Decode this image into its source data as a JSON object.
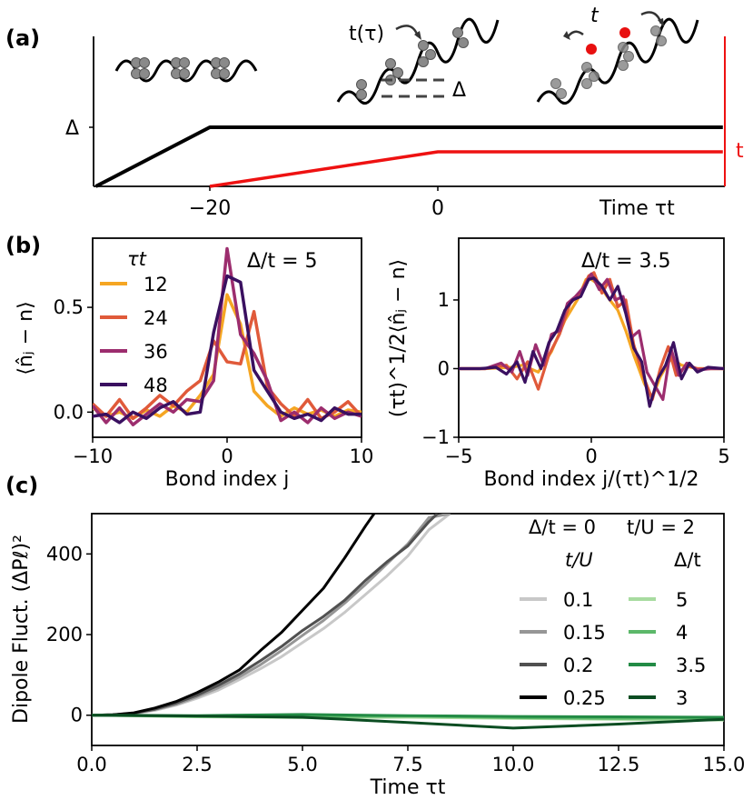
{
  "panel_labels": {
    "a": "(a)",
    "b": "(b)",
    "c": "(c)"
  },
  "colors": {
    "delta_line": "#000000",
    "t_line": "#ee1111",
    "atom": "#8a8a8a",
    "hole": "#e81010",
    "b_series": [
      "#f5a623",
      "#e05a3a",
      "#9c2d6e",
      "#3a1060"
    ],
    "c_gray": [
      "#c8c8c8",
      "#969696",
      "#505050",
      "#000000"
    ],
    "c_green": [
      "#a8dba0",
      "#5cb86a",
      "#238b45",
      "#0b4d22"
    ]
  },
  "chart_data": [
    {
      "panel": "a",
      "type": "line",
      "xlabel": "Time τt",
      "x_ticks": [
        "−20",
        "0"
      ],
      "x_tick_values": [
        -20,
        0
      ],
      "xlim": [
        -30,
        25
      ],
      "y_tick_labels": {
        "delta": "Δ",
        "t": "t"
      },
      "series": [
        {
          "name": "Δ",
          "x": [
            -30,
            -20,
            25
          ],
          "y": [
            0,
            1,
            1
          ]
        },
        {
          "name": "t",
          "x": [
            -20,
            0,
            25
          ],
          "y": [
            0,
            0.72,
            0.72
          ]
        }
      ],
      "annotations": {
        "t_tau": "t(τ)",
        "delta": "Δ",
        "t": "t"
      }
    },
    {
      "panel": "b-left",
      "type": "line",
      "annotation": "Δ/t = 5",
      "xlabel": "Bond index j",
      "ylabel": "⟨n̂ⱼ − n⟩",
      "xlim": [
        -10,
        10
      ],
      "ylim": [
        -0.12,
        0.83
      ],
      "x_ticks": [
        -10,
        0,
        10
      ],
      "y_ticks": [
        0.0,
        0.5
      ],
      "y_tick_labels": [
        "0.0",
        "0.5"
      ],
      "legend_title": "τt",
      "legend_position": "upper-left",
      "x": [
        -10,
        -9,
        -8,
        -7,
        -6,
        -5,
        -4,
        -3,
        -2,
        -1,
        0,
        1,
        2,
        3,
        4,
        5,
        6,
        7,
        8,
        9,
        10
      ],
      "series": [
        {
          "name": "12",
          "values": [
            0.02,
            -0.02,
            0.0,
            -0.03,
            0.01,
            -0.02,
            0.03,
            0.0,
            0.08,
            0.18,
            0.56,
            0.42,
            0.1,
            0.03,
            -0.02,
            0.02,
            -0.01,
            0.01,
            -0.02,
            0.01,
            0.0
          ]
        },
        {
          "name": "24",
          "values": [
            0.04,
            -0.02,
            0.06,
            -0.03,
            0.02,
            0.08,
            0.03,
            0.1,
            0.15,
            0.34,
            0.24,
            0.23,
            0.48,
            0.12,
            0.04,
            -0.02,
            0.06,
            -0.03,
            0.0,
            0.05,
            -0.02
          ]
        },
        {
          "name": "36",
          "values": [
            0.03,
            -0.05,
            0.02,
            -0.06,
            -0.01,
            0.04,
            0.0,
            0.06,
            0.05,
            0.15,
            0.78,
            0.37,
            0.28,
            0.15,
            -0.04,
            0.0,
            -0.05,
            0.02,
            -0.03,
            0.0,
            -0.02
          ]
        },
        {
          "name": "48",
          "values": [
            -0.02,
            -0.01,
            -0.05,
            0.0,
            -0.03,
            0.02,
            0.05,
            -0.01,
            0.0,
            0.38,
            0.65,
            0.62,
            0.2,
            0.1,
            0.0,
            -0.03,
            -0.01,
            -0.04,
            0.02,
            -0.01,
            -0.01
          ]
        }
      ]
    },
    {
      "panel": "b-right",
      "type": "line",
      "annotation": "Δ/t = 3.5",
      "xlabel": "Bond index j/(τt)^1/2",
      "ylabel": "(τt)^1/2⟨n̂ⱼ − n⟩",
      "xlim": [
        -5,
        5
      ],
      "ylim": [
        -1.0,
        1.9
      ],
      "x_ticks": [
        -5,
        0,
        5
      ],
      "y_ticks": [
        -1,
        0,
        1
      ],
      "series": [
        {
          "name": "12",
          "x": [
            -5,
            -4,
            -3,
            -2.6,
            -2,
            -1.5,
            -1,
            -0.5,
            -0.2,
            0,
            0.3,
            0.6,
            1,
            1.3,
            1.6,
            2,
            2.3,
            2.6,
            3,
            3.4,
            4,
            5
          ],
          "y": [
            0.0,
            0.0,
            0.02,
            0.05,
            -0.05,
            0.25,
            0.7,
            1.02,
            1.3,
            1.3,
            1.22,
            1.05,
            0.85,
            0.55,
            0.2,
            -0.22,
            -0.42,
            -0.12,
            0.15,
            0.05,
            0.0,
            0.0
          ]
        },
        {
          "name": "24",
          "x": [
            -5,
            -4,
            -3.2,
            -2.8,
            -2.4,
            -2,
            -1.6,
            -1.2,
            -0.8,
            -0.4,
            -0.1,
            0.1,
            0.4,
            0.7,
            1.0,
            1.3,
            1.6,
            2.0,
            2.3,
            2.6,
            2.9,
            3.2,
            3.6,
            4,
            5
          ],
          "y": [
            0.0,
            0.0,
            0.05,
            -0.15,
            0.1,
            -0.3,
            0.2,
            0.5,
            0.95,
            1.1,
            1.35,
            1.4,
            1.1,
            1.3,
            0.9,
            1.0,
            0.35,
            -0.15,
            -0.45,
            0.0,
            0.32,
            -0.1,
            0.05,
            0.0,
            0.0
          ]
        },
        {
          "name": "36",
          "x": [
            -5,
            -4,
            -3.4,
            -3,
            -2.7,
            -2.4,
            -2.1,
            -1.8,
            -1.5,
            -1.2,
            -0.9,
            -0.6,
            -0.3,
            0,
            0.3,
            0.6,
            0.9,
            1.2,
            1.5,
            1.8,
            2.1,
            2.4,
            2.7,
            3,
            3.3,
            3.6,
            4,
            4.5,
            5
          ],
          "y": [
            0.0,
            0.0,
            0.08,
            -0.05,
            0.25,
            -0.1,
            0.35,
            0.05,
            0.5,
            0.55,
            0.95,
            1.05,
            1.18,
            1.38,
            1.15,
            1.3,
            1.0,
            1.05,
            0.45,
            0.55,
            -0.05,
            -0.25,
            -0.45,
            0.3,
            -0.1,
            0.08,
            -0.02,
            0.0,
            0.0
          ]
        },
        {
          "name": "48",
          "x": [
            -5,
            -4.2,
            -3.6,
            -3.2,
            -2.8,
            -2.5,
            -2.2,
            -1.9,
            -1.6,
            -1.3,
            -1.0,
            -0.7,
            -0.4,
            -0.1,
            0.1,
            0.4,
            0.7,
            1.0,
            1.3,
            1.6,
            1.9,
            2.2,
            2.5,
            2.8,
            3.1,
            3.4,
            3.7,
            4.0,
            4.4,
            5
          ],
          "y": [
            0.0,
            0.0,
            0.02,
            -0.08,
            0.1,
            -0.2,
            0.25,
            0.0,
            0.38,
            0.55,
            0.85,
            1.0,
            1.05,
            1.3,
            1.32,
            1.2,
            1.0,
            1.2,
            0.8,
            0.3,
            0.1,
            -0.55,
            -0.15,
            0.05,
            0.38,
            -0.15,
            0.08,
            -0.05,
            0.02,
            0.0
          ]
        }
      ]
    },
    {
      "panel": "c",
      "type": "line",
      "xlabel": "Time τt",
      "ylabel": "Dipole Fluct. (ΔPℓ)²",
      "xlim": [
        0,
        15
      ],
      "ylim": [
        -75,
        500
      ],
      "x_ticks": [
        0,
        2.5,
        5,
        7.5,
        10,
        12.5,
        15
      ],
      "x_tick_labels": [
        "0.0",
        "2.5",
        "5.0",
        "7.5",
        "10.0",
        "12.5",
        "15.0"
      ],
      "y_ticks": [
        0,
        200,
        400
      ],
      "legend_position": "right",
      "legend_groups": [
        {
          "title": "Δ/t = 0",
          "subtitle": "t/U",
          "entries": [
            "0.1",
            "0.15",
            "0.2",
            "0.25"
          ]
        },
        {
          "title": "t/U = 2",
          "subtitle": "Δ/t",
          "entries": [
            "5",
            "4",
            "3.5",
            "3"
          ]
        }
      ],
      "series": [
        {
          "name": "0.1",
          "x": [
            0,
            0.5,
            1,
            1.5,
            2,
            2.5,
            3,
            3.5,
            4,
            4.5,
            5,
            5.5,
            6,
            6.5,
            7,
            7.5,
            8,
            8.5
          ],
          "y": [
            0,
            1,
            4,
            12,
            25,
            42,
            62,
            88,
            115,
            145,
            180,
            215,
            255,
            300,
            345,
            395,
            460,
            500
          ]
        },
        {
          "name": "0.15",
          "x": [
            0,
            0.5,
            1,
            1.5,
            2,
            2.5,
            3,
            3.5,
            4,
            4.5,
            5,
            5.5,
            6,
            6.5,
            7,
            7.5,
            8,
            8.5
          ],
          "y": [
            0,
            1,
            5,
            14,
            27,
            46,
            68,
            95,
            125,
            160,
            198,
            235,
            278,
            325,
            375,
            425,
            490,
            500
          ]
        },
        {
          "name": "0.2",
          "x": [
            0,
            0.5,
            1,
            1.5,
            2,
            2.5,
            3,
            3.5,
            4,
            4.5,
            5,
            5.5,
            6,
            6.5,
            7,
            7.5,
            8,
            8.2
          ],
          "y": [
            0,
            1,
            5,
            15,
            30,
            50,
            74,
            102,
            135,
            170,
            210,
            245,
            285,
            335,
            380,
            420,
            480,
            500
          ]
        },
        {
          "name": "0.25",
          "x": [
            0,
            0.5,
            1,
            1.5,
            2,
            2.5,
            3,
            3.5,
            4,
            4.5,
            5,
            5.5,
            6,
            6.5,
            6.7
          ],
          "y": [
            0,
            1,
            6,
            18,
            34,
            56,
            82,
            112,
            160,
            205,
            260,
            315,
            390,
            470,
            500
          ]
        },
        {
          "name": "5",
          "x": [
            0,
            2.5,
            5,
            7.5,
            10,
            12.5,
            15
          ],
          "y": [
            0,
            -4,
            -6,
            -5,
            -8,
            -10,
            -12
          ]
        },
        {
          "name": "4",
          "x": [
            0,
            2.5,
            5,
            7.5,
            10,
            12.5,
            15
          ],
          "y": [
            0,
            -3,
            -4,
            -2,
            -6,
            -8,
            -6
          ]
        },
        {
          "name": "3.5",
          "x": [
            0,
            2.5,
            5,
            7.5,
            10,
            12.5,
            15
          ],
          "y": [
            0,
            -1,
            2,
            -1,
            -3,
            -4,
            -5
          ]
        },
        {
          "name": "3",
          "x": [
            0,
            2.5,
            5,
            7.5,
            10,
            12.5,
            15
          ],
          "y": [
            0,
            -2,
            -5,
            -18,
            -32,
            -22,
            -10
          ]
        }
      ]
    }
  ]
}
